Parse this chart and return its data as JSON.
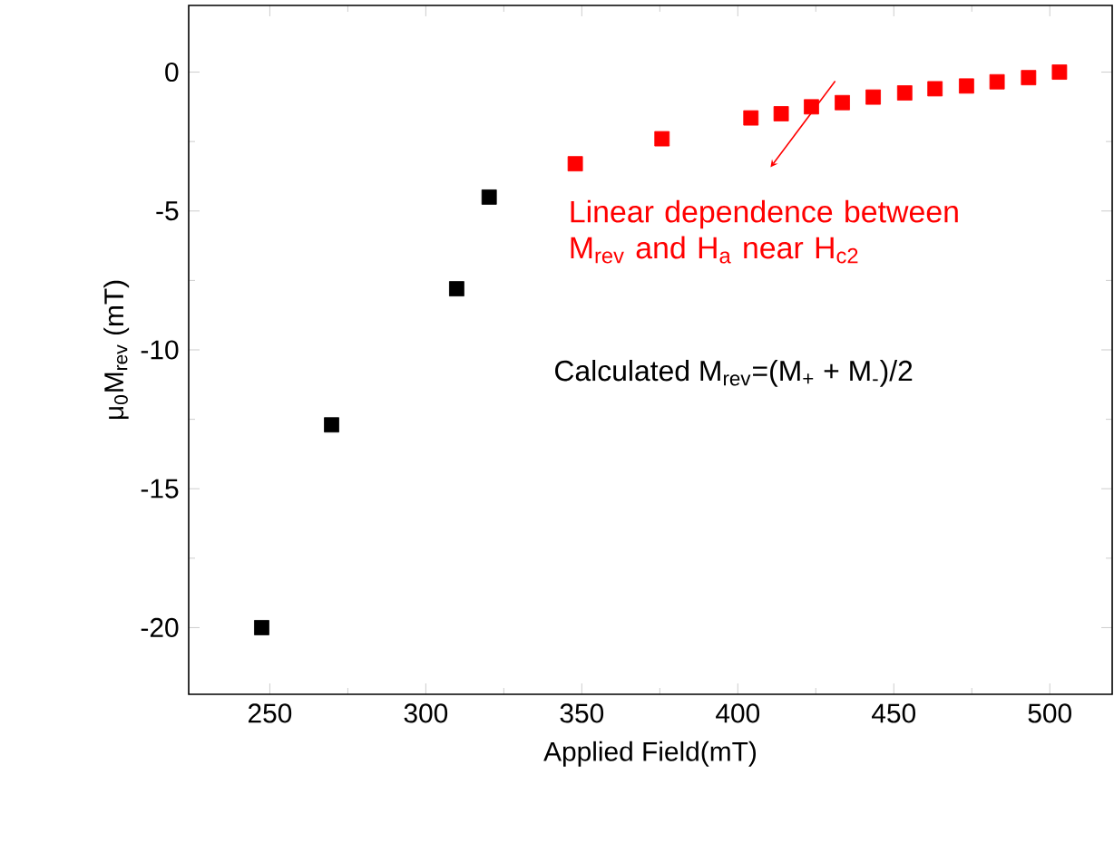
{
  "chart_data": {
    "type": "scatter",
    "xlabel": "Applied Field(mT)",
    "ylabel": "μ$_{0}$M$_{rev}$ (mT)",
    "xlim": [
      224,
      520
    ],
    "ylim": [
      -22.4,
      2.4
    ],
    "xticks": [
      250,
      300,
      350,
      400,
      450,
      500
    ],
    "yticks": [
      -20,
      -15,
      -10,
      -5,
      0
    ],
    "marker": "square",
    "grid": false,
    "tick_labels": [
      "x",
      "y"
    ],
    "series": [
      {
        "color": "#000000",
        "x": [
          247.4,
          269.8,
          309.9,
          320.3
        ],
        "values": [
          -20.0,
          -12.7,
          -7.8,
          -4.5
        ]
      },
      {
        "color": "#ff0000",
        "x": [
          347.9,
          375.7,
          404.2,
          413.9,
          423.6,
          433.5,
          443.4,
          453.5,
          463.2,
          473.3,
          483.1,
          493.2,
          503.1
        ],
        "values": [
          -3.3,
          -2.4,
          -1.65,
          -1.5,
          -1.25,
          -1.1,
          -0.9,
          -0.75,
          -0.6,
          -0.5,
          -0.35,
          -0.2,
          0.0
        ]
      }
    ],
    "annotations": [
      "Linear dependence between M$_{rev}$ and H$_{a}$ near H$_{c2}$",
      "Calculated M$_{rev}$=(M$_{+}$ + M$_{-}$)/2"
    ]
  }
}
